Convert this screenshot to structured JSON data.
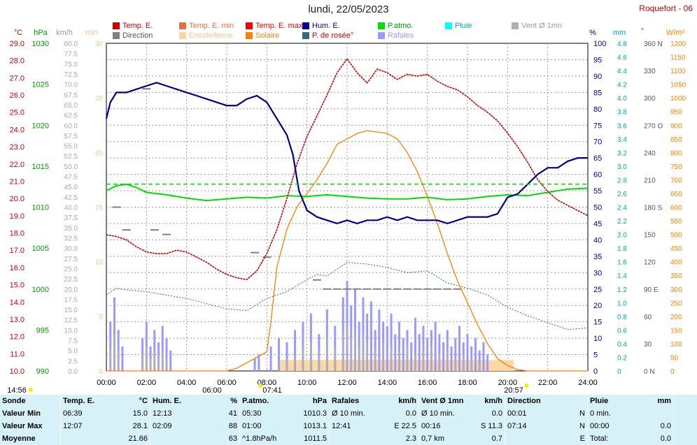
{
  "header": {
    "title": "lundi, 22/05/2023",
    "station": "Roquefort - 06"
  },
  "legend": [
    {
      "label": "Temp. E.",
      "color": "#cc0000",
      "text_color": "#cc0000"
    },
    {
      "label": "Direction",
      "color": "#808080",
      "text_color": "#555555"
    },
    {
      "label": "Temp. E. min",
      "color": "#e87040",
      "text_color": "#e87040"
    },
    {
      "label": "Ensoleilleme",
      "color": "#fdd8a0",
      "text_color": "#f0c890"
    },
    {
      "label": "Temp. E. max",
      "color": "#ff0000",
      "text_color": "#ff0000"
    },
    {
      "label": "Solaire",
      "color": "#ff8000",
      "text_color": "#ff8000"
    },
    {
      "label": "Hum. E.",
      "color": "#00008b",
      "text_color": "#00008b"
    },
    {
      "label": "P. de rosée°",
      "color": "#2f6f6f",
      "text_color": "#cc0000"
    },
    {
      "label": "P.atmo.",
      "color": "#00dd00",
      "text_color": "#009900"
    },
    {
      "label": "Rafales",
      "color": "#9999ff",
      "text_color": "#9999ff"
    },
    {
      "label": "Pluie",
      "color": "#00ffff",
      "text_color": "#00aaaa"
    },
    {
      "label": "Vent Ø 1mn",
      "color": "#b0b0b0",
      "text_color": "#999999"
    }
  ],
  "axes": {
    "temp_unit": "°C",
    "press_unit": "hPa",
    "wind_unit": "km/h",
    "sun_unit": "min",
    "hum_unit": "%",
    "rain_unit": "mm",
    "dir_unit": "°",
    "solar_unit": "W/m²",
    "temp_ticks": [
      "29.0",
      "28.0",
      "27.0",
      "26.0",
      "25.0",
      "24.0",
      "23.0",
      "22.0",
      "21.0",
      "20.0",
      "19.0",
      "18.0",
      "17.0",
      "16.0",
      "15.0",
      "14.0",
      "13.0",
      "12.0",
      "11.0",
      "10.0"
    ],
    "press_ticks": [
      "1030",
      "1025",
      "1020",
      "1015",
      "1010",
      "1005",
      "1000",
      "995",
      "990"
    ],
    "wind_ticks": [
      "80.0",
      "77.5",
      "75.0",
      "72.5",
      "70.0",
      "67.5",
      "65.0",
      "62.5",
      "60.0",
      "57.5",
      "55.0",
      "52.5",
      "50.0",
      "47.5",
      "45.0",
      "42.5",
      "40.0",
      "37.5",
      "35.0",
      "32.5",
      "30.0",
      "27.5",
      "25.0",
      "22.5",
      "20.0",
      "17.5",
      "15.0",
      "12.5",
      "10.0",
      "7.5",
      "5.0",
      "2.5",
      "0.0"
    ],
    "sun_ticks": [
      "30",
      "25",
      "20",
      "15",
      "10",
      "5",
      "0"
    ],
    "hum_ticks": [
      "100",
      "95",
      "90",
      "85",
      "80",
      "75",
      "70",
      "65",
      "60",
      "55",
      "50",
      "45",
      "40",
      "35",
      "30",
      "25",
      "20",
      "15",
      "10",
      "5",
      "0"
    ],
    "rain_ticks": [
      "4.8",
      "4.6",
      "4.4",
      "4.2",
      "4.0",
      "3.8",
      "3.6",
      "3.4",
      "3.2",
      "3.0",
      "2.8",
      "2.6",
      "2.4",
      "2.2",
      "2.0",
      "1.8",
      "1.6",
      "1.4",
      "1.2",
      "1.0",
      "0.8",
      "0.6",
      "0.4",
      "0.2",
      "0"
    ],
    "dir_ticks": [
      "360 N",
      "330",
      "300",
      "270 O",
      "240",
      "210",
      "180 S",
      "150",
      "120",
      "90 E",
      "60",
      "30",
      "0 N"
    ],
    "solar_ticks": [
      "1200",
      "1150",
      "1100",
      "1050",
      "1000",
      "950",
      "900",
      "850",
      "800",
      "750",
      "700",
      "650",
      "600",
      "550",
      "500",
      "450",
      "400",
      "350",
      "300",
      "250",
      "200",
      "150",
      "100",
      "50",
      "0"
    ],
    "time_ticks": [
      "00:00",
      "02:00",
      "04:00",
      "06:00",
      "08:00",
      "10:00",
      "12:00",
      "14:00",
      "16:00",
      "18:00",
      "20:00",
      "22:00",
      "24:00"
    ],
    "marker_left": "14:56",
    "sunrise_label": "06:00",
    "sunrise_detail": "07:41",
    "sunset_label": "20:57"
  },
  "chart_data": {
    "type": "line",
    "title": "lundi, 22/05/2023",
    "x_unit": "hour",
    "xlim": [
      0,
      24
    ],
    "series": [
      {
        "name": "Temp. E.",
        "axis": "°C",
        "ylim": [
          10,
          29
        ],
        "x": [
          0,
          0.5,
          1,
          1.5,
          2,
          2.5,
          3,
          3.5,
          4,
          4.5,
          5,
          5.5,
          6,
          6.5,
          7,
          7.5,
          8,
          8.5,
          9,
          9.5,
          10,
          10.5,
          11,
          11.5,
          12,
          12.5,
          13,
          13.5,
          14,
          14.5,
          15,
          15.5,
          16,
          16.5,
          17,
          17.5,
          18,
          18.5,
          19,
          19.5,
          20,
          20.5,
          21,
          21.5,
          22,
          22.5,
          23,
          23.5,
          24
        ],
        "values": [
          17.9,
          17.8,
          17.6,
          17.2,
          16.9,
          16.8,
          16.8,
          17.0,
          16.9,
          16.6,
          16.3,
          15.9,
          15.6,
          15.4,
          15.3,
          15.8,
          16.8,
          18.2,
          20.0,
          22.0,
          23.6,
          24.8,
          26.0,
          27.3,
          28.1,
          27.3,
          26.7,
          27.5,
          27.3,
          26.9,
          27.2,
          27.1,
          27.2,
          26.8,
          26.5,
          26.3,
          25.9,
          25.4,
          25.0,
          24.5,
          23.8,
          23.0,
          22.1,
          21.1,
          20.4,
          19.9,
          19.6,
          19.3,
          19.0
        ]
      },
      {
        "name": "Hum. E.",
        "axis": "%",
        "ylim": [
          0,
          100
        ],
        "x": [
          0,
          0.2,
          0.5,
          1,
          1.5,
          2,
          2.5,
          3,
          3.5,
          4,
          4.5,
          5,
          5.5,
          6,
          6.5,
          7,
          7.5,
          8,
          8.5,
          9,
          9.3,
          9.6,
          10,
          10.5,
          11,
          11.5,
          12,
          12.5,
          13,
          13.5,
          14,
          14.5,
          15,
          15.5,
          16,
          16.5,
          17,
          17.5,
          18,
          18.5,
          19,
          19.5,
          20,
          20.5,
          21,
          21.5,
          22,
          22.5,
          23,
          23.5,
          24
        ],
        "values": [
          77,
          82,
          85,
          85,
          86,
          87,
          88,
          87,
          86,
          85,
          84,
          83,
          82,
          81,
          81,
          83,
          84,
          82,
          77,
          72,
          66,
          55,
          49,
          47,
          46,
          45,
          46,
          45,
          46,
          46,
          47,
          46,
          47,
          46,
          46,
          46,
          45,
          46,
          47,
          47,
          47,
          48,
          53,
          54,
          57,
          60,
          62,
          62,
          64,
          65,
          65
        ]
      },
      {
        "name": "P.atmo.",
        "axis": "hPa",
        "ylim": [
          990,
          1030
        ],
        "x": [
          0,
          0.5,
          1,
          1.5,
          2,
          3,
          4,
          5,
          6,
          7,
          8,
          9,
          10,
          11,
          12,
          13,
          14,
          15,
          16,
          17,
          18,
          19,
          20,
          21,
          22,
          23,
          24
        ],
        "values": [
          1012.0,
          1012.6,
          1012.8,
          1012.4,
          1011.8,
          1011.5,
          1011.1,
          1010.8,
          1011.0,
          1011.2,
          1011.1,
          1011.4,
          1011.3,
          1011.5,
          1011.3,
          1011.1,
          1011.0,
          1011.0,
          1011.2,
          1010.9,
          1011.0,
          1011.3,
          1011.5,
          1011.4,
          1011.8,
          1012.2,
          1012.3
        ]
      },
      {
        "name": "Solaire",
        "axis": "W/m²",
        "ylim": [
          0,
          1200
        ],
        "x": [
          0,
          6,
          6.5,
          7,
          7.5,
          8,
          8.2,
          8.5,
          9,
          9.5,
          10,
          10.5,
          11,
          11.5,
          12,
          12.5,
          13,
          13.5,
          14,
          14.5,
          15,
          15.5,
          16,
          16.5,
          17,
          17.5,
          18,
          18.5,
          19,
          19.5,
          20,
          20.5,
          21,
          24
        ],
        "values": [
          0,
          0,
          10,
          30,
          50,
          70,
          180,
          380,
          520,
          600,
          650,
          700,
          760,
          830,
          850,
          870,
          880,
          875,
          870,
          850,
          800,
          730,
          640,
          540,
          430,
          330,
          250,
          170,
          100,
          45,
          20,
          5,
          0,
          0
        ]
      },
      {
        "name": "P. de rosée°",
        "axis": "°C",
        "ylim": [
          10,
          29
        ],
        "x": [
          0,
          0.5,
          1,
          2,
          3,
          4,
          5,
          6,
          7,
          8,
          9,
          10,
          10.5,
          11,
          12,
          13,
          14,
          15,
          16,
          17,
          18,
          19,
          20,
          21,
          22,
          23,
          24
        ],
        "values": [
          14.4,
          14.8,
          14.7,
          14.6,
          14.4,
          14.2,
          13.9,
          13.6,
          13.5,
          14.2,
          14.6,
          15.3,
          15.6,
          15.5,
          16.3,
          16.2,
          16.0,
          15.7,
          15.8,
          15.1,
          14.8,
          14.4,
          13.7,
          13.2,
          12.8,
          12.4,
          12.5
        ]
      },
      {
        "name": "Rafales",
        "axis": "km/h",
        "ylim": [
          0,
          80
        ],
        "x": [
          0.2,
          0.4,
          0.6,
          0.8,
          1.8,
          2.0,
          2.2,
          2.4,
          2.6,
          2.8,
          3.0,
          3.2,
          7.4,
          7.6,
          8.2,
          8.6,
          9.0,
          9.4,
          9.8,
          10.2,
          10.6,
          11.0,
          11.4,
          11.8,
          12.0,
          12.2,
          12.4,
          12.6,
          12.8,
          13.0,
          13.2,
          13.4,
          13.6,
          13.8,
          14.0,
          14.2,
          14.4,
          14.6,
          14.8,
          15.0,
          15.2,
          15.4,
          15.6,
          15.8,
          16.0,
          16.2,
          16.4,
          16.6,
          16.8,
          17.0,
          17.2,
          17.4,
          17.6,
          17.8,
          18.0,
          18.2,
          18.4,
          18.6,
          18.8,
          19.0
        ],
        "values": [
          12,
          18,
          10,
          6,
          8,
          12,
          6,
          10,
          7,
          11,
          8,
          5,
          3,
          4,
          6,
          8,
          7,
          10,
          12,
          14,
          9,
          15,
          11,
          18,
          22,
          16,
          20,
          12,
          18,
          14,
          17,
          10,
          15,
          12,
          11,
          14,
          9,
          12,
          8,
          10,
          7,
          13,
          9,
          11,
          8,
          10,
          12,
          9,
          7,
          10,
          6,
          8,
          11,
          7,
          9,
          6,
          8,
          5,
          7,
          4
        ]
      },
      {
        "name": "Vent Ø 1mn",
        "axis": "km/h",
        "ylim": [
          0,
          80
        ],
        "x": [
          0.2,
          0.4,
          0.6,
          1.8,
          2.0,
          2.2,
          2.4,
          2.6,
          2.8,
          3.0,
          9.0,
          9.4,
          9.8,
          10.2,
          10.6,
          11.0,
          11.4,
          11.8,
          12.0,
          12.2,
          12.4,
          12.6,
          12.8,
          13.0,
          13.4,
          13.8,
          14.2,
          14.6,
          15.0,
          15.4,
          15.8,
          16.2,
          16.6,
          17.0,
          17.4,
          17.8,
          18.2,
          18.6
        ],
        "values": [
          6,
          9,
          5,
          4,
          6,
          3,
          5,
          4,
          5,
          3,
          3,
          4,
          6,
          7,
          5,
          8,
          6,
          9,
          11,
          8,
          10,
          6,
          9,
          7,
          5,
          7,
          6,
          5,
          6,
          4,
          5,
          6,
          4,
          5,
          3,
          4,
          3,
          2
        ]
      },
      {
        "name": "Direction",
        "axis": "°",
        "ylim": [
          0,
          360
        ],
        "x": [
          0.5,
          1.0,
          2.0,
          2.4,
          3.0,
          7.4,
          8.0,
          10.5,
          11.0,
          11.5,
          12.0,
          12.5,
          13.0,
          13.5,
          14.0,
          14.5,
          15.0,
          15.5,
          16.0,
          16.5,
          17.0,
          17.5
        ],
        "values": [
          180,
          155,
          310,
          155,
          150,
          130,
          125,
          100,
          90,
          90,
          90,
          90,
          90,
          90,
          90,
          90,
          90,
          90,
          90,
          90,
          90,
          90
        ]
      },
      {
        "name": "Ensoleilleme",
        "axis": "min",
        "ylim": [
          0,
          30
        ],
        "x": [
          8.6,
          20.3
        ],
        "values": [
          1,
          1
        ]
      }
    ]
  },
  "stats": {
    "headers": [
      {
        "label": "Sonde",
        "unit": ""
      },
      {
        "label": "Temp. E.",
        "unit": "°C"
      },
      {
        "label": "Hum. E.",
        "unit": "%"
      },
      {
        "label": "P.atmo.",
        "unit": "hPa"
      },
      {
        "label": "Rafales",
        "unit": "km/h"
      },
      {
        "label": "Vent Ø 1mn",
        "unit": "km/h"
      },
      {
        "label": "Direction",
        "unit": ""
      },
      {
        "label": "Pluie",
        "unit": "mm"
      }
    ],
    "rows": [
      {
        "label": "Valeur Min",
        "cells": [
          [
            "06:39",
            "15.0"
          ],
          [
            "12:13",
            "41"
          ],
          [
            "05:30",
            "1010.3"
          ],
          [
            "Ø 10 min.",
            "0.0"
          ],
          [
            "Ø 10 min.",
            "0.0"
          ],
          [
            "00:01",
            "N"
          ],
          [
            "0 min.",
            ""
          ]
        ]
      },
      {
        "label": "Valeur Max",
        "cells": [
          [
            "12:07",
            "28.1"
          ],
          [
            "02:09",
            "88"
          ],
          [
            "01:00",
            "1013.1"
          ],
          [
            "12:41",
            "E 22.5"
          ],
          [
            "00:16",
            "S 11.3"
          ],
          [
            "07:14",
            "N"
          ],
          [
            "00:00",
            "0.0"
          ]
        ]
      },
      {
        "label": "Moyenne",
        "cells": [
          [
            "",
            "21.66"
          ],
          [
            "",
            "63"
          ],
          [
            "^1.8hPa/h",
            "1011.5"
          ],
          [
            "",
            "2.3"
          ],
          [
            "0,7 km",
            "0.7"
          ],
          [
            "",
            "E"
          ],
          [
            "Total:",
            "0.0"
          ]
        ]
      }
    ]
  }
}
